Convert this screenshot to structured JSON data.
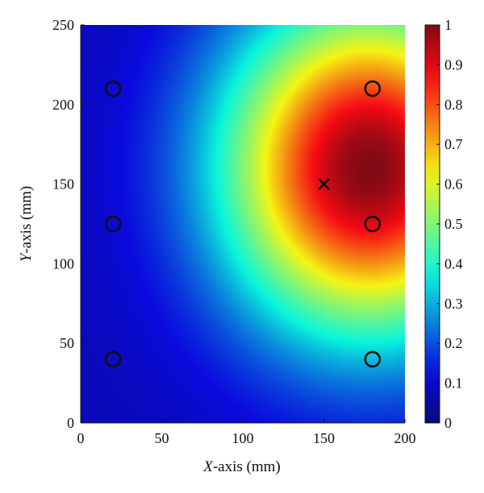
{
  "chart_data": {
    "type": "heatmap",
    "title": "",
    "xlabel": {
      "italic": "X",
      "rest": "-axis (mm)"
    },
    "ylabel": {
      "italic": "Y",
      "rest": "-axis (mm)"
    },
    "xlim": [
      0,
      200
    ],
    "ylim": [
      0,
      250
    ],
    "xticks": [
      "0",
      "50",
      "100",
      "150",
      "200"
    ],
    "yticks": [
      "0",
      "50",
      "100",
      "150",
      "200",
      "250"
    ],
    "colorbar": {
      "range": [
        0,
        1
      ],
      "ticks": [
        "0",
        "0.1",
        "0.2",
        "0.3",
        "0.4",
        "0.5",
        "0.6",
        "0.7",
        "0.8",
        "0.9",
        "1"
      ],
      "colormap": "jet"
    },
    "field": {
      "peak_value": 1.0,
      "peak_location": {
        "x": 178,
        "y": 160
      },
      "background_value": 0.08,
      "spread_x_mm": 95,
      "spread_y_mm": 110,
      "value_at_corner_0_0": 0.05,
      "value_at_left_mid": 0.25
    },
    "sensors": [
      {
        "x": 20,
        "y": 210
      },
      {
        "x": 20,
        "y": 125
      },
      {
        "x": 20,
        "y": 40
      },
      {
        "x": 180,
        "y": 210
      },
      {
        "x": 180,
        "y": 125
      },
      {
        "x": 180,
        "y": 40
      }
    ],
    "source_marker": {
      "x": 150,
      "y": 150,
      "symbol": "×"
    },
    "grid": false,
    "legend": "none"
  }
}
